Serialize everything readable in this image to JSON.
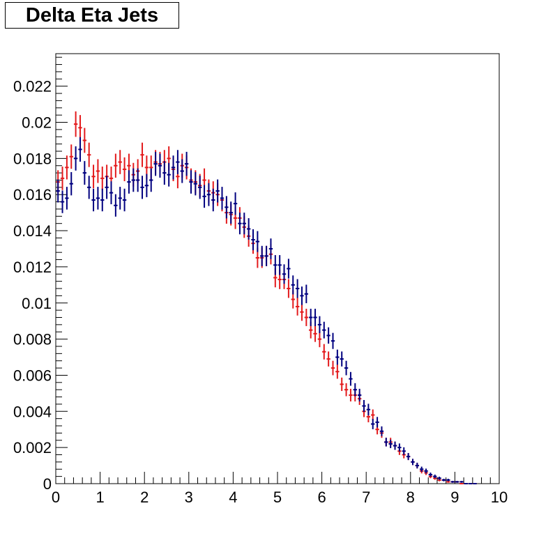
{
  "title": "Delta Eta Jets",
  "chart_data": {
    "type": "scatter",
    "title": "Delta Eta Jets",
    "xlabel": "",
    "ylabel": "",
    "xlim": [
      0,
      10
    ],
    "ylim": [
      0,
      0.0238
    ],
    "grid": false,
    "x_ticks": [
      "0",
      "1",
      "2",
      "3",
      "4",
      "5",
      "6",
      "7",
      "8",
      "9",
      "10"
    ],
    "y_ticks": [
      "0",
      "0.002",
      "0.004",
      "0.006",
      "0.008",
      "0.01",
      "0.012",
      "0.014",
      "0.016",
      "0.018",
      "0.02",
      "0.022"
    ],
    "bin_width": 0.1,
    "series": [
      {
        "color": "#e31a1c",
        "x": [
          0.05,
          0.15,
          0.25,
          0.35,
          0.45,
          0.55,
          0.65,
          0.75,
          0.85,
          0.95,
          1.05,
          1.15,
          1.25,
          1.35,
          1.45,
          1.55,
          1.65,
          1.75,
          1.85,
          1.95,
          2.05,
          2.15,
          2.25,
          2.35,
          2.45,
          2.55,
          2.65,
          2.75,
          2.85,
          2.95,
          3.05,
          3.15,
          3.25,
          3.35,
          3.45,
          3.55,
          3.65,
          3.75,
          3.85,
          3.95,
          4.05,
          4.15,
          4.25,
          4.35,
          4.45,
          4.55,
          4.65,
          4.75,
          4.85,
          4.95,
          5.05,
          5.15,
          5.25,
          5.35,
          5.45,
          5.55,
          5.65,
          5.75,
          5.85,
          5.95,
          6.05,
          6.15,
          6.25,
          6.35,
          6.45,
          6.55,
          6.65,
          6.75,
          6.85,
          6.95,
          7.05,
          7.15,
          7.25,
          7.35,
          7.45,
          7.55,
          7.65,
          7.75,
          7.85,
          7.95,
          8.05,
          8.15,
          8.25,
          8.35,
          8.45,
          8.55,
          8.65,
          8.75,
          8.85,
          8.95,
          9.05,
          9.15,
          9.25,
          9.35,
          9.45
        ],
        "y": [
          0.0167,
          0.0169,
          0.0175,
          0.0181,
          0.0199,
          0.0197,
          0.019,
          0.0182,
          0.017,
          0.0173,
          0.0169,
          0.017,
          0.0169,
          0.0176,
          0.0178,
          0.0174,
          0.0176,
          0.0171,
          0.0173,
          0.0182,
          0.0175,
          0.0175,
          0.0178,
          0.0177,
          0.0178,
          0.018,
          0.0174,
          0.017,
          0.0176,
          0.0175,
          0.0168,
          0.0167,
          0.0165,
          0.0168,
          0.0162,
          0.0161,
          0.016,
          0.0157,
          0.015,
          0.0149,
          0.0147,
          0.0147,
          0.0142,
          0.0137,
          0.0133,
          0.0125,
          0.0125,
          0.0126,
          0.0127,
          0.0114,
          0.0113,
          0.0113,
          0.0108,
          0.0102,
          0.0098,
          0.0095,
          0.0092,
          0.0085,
          0.0083,
          0.008,
          0.0073,
          0.0069,
          0.0064,
          0.0062,
          0.0055,
          0.0052,
          0.0049,
          0.0049,
          0.0047,
          0.004,
          0.0037,
          0.0038,
          0.003,
          0.0028,
          0.0023,
          0.0023,
          0.0021,
          0.0018,
          0.0016,
          0.0015,
          0.0012,
          0.001,
          0.0007,
          0.0006,
          0.0004,
          0.0003,
          0.0002,
          0.0002,
          0.0001,
          0.0001,
          0.0001,
          0.0,
          0.0,
          0.0,
          0.0
        ]
      },
      {
        "color": "#00007f",
        "x": [
          0.05,
          0.15,
          0.25,
          0.35,
          0.45,
          0.55,
          0.65,
          0.75,
          0.85,
          0.95,
          1.05,
          1.15,
          1.25,
          1.35,
          1.45,
          1.55,
          1.65,
          1.75,
          1.85,
          1.95,
          2.05,
          2.15,
          2.25,
          2.35,
          2.45,
          2.55,
          2.65,
          2.75,
          2.85,
          2.95,
          3.05,
          3.15,
          3.25,
          3.35,
          3.45,
          3.55,
          3.65,
          3.75,
          3.85,
          3.95,
          4.05,
          4.15,
          4.25,
          4.35,
          4.45,
          4.55,
          4.65,
          4.75,
          4.85,
          4.95,
          5.05,
          5.15,
          5.25,
          5.35,
          5.45,
          5.55,
          5.65,
          5.75,
          5.85,
          5.95,
          6.05,
          6.15,
          6.25,
          6.35,
          6.45,
          6.55,
          6.65,
          6.75,
          6.85,
          6.95,
          7.05,
          7.15,
          7.25,
          7.35,
          7.45,
          7.55,
          7.65,
          7.75,
          7.85,
          7.95,
          8.05,
          8.15,
          8.25,
          8.35,
          8.45,
          8.55,
          8.65,
          8.75,
          8.85,
          8.95,
          9.05,
          9.15,
          9.25,
          9.35,
          9.45
        ],
        "y": [
          0.0162,
          0.0156,
          0.0158,
          0.0166,
          0.018,
          0.0185,
          0.0172,
          0.0164,
          0.0157,
          0.0158,
          0.0157,
          0.0164,
          0.0161,
          0.0154,
          0.0158,
          0.0157,
          0.0167,
          0.0168,
          0.0168,
          0.0164,
          0.0165,
          0.0168,
          0.0177,
          0.0176,
          0.0172,
          0.0171,
          0.0175,
          0.0178,
          0.0173,
          0.0177,
          0.0167,
          0.0166,
          0.0164,
          0.0159,
          0.016,
          0.0157,
          0.0162,
          0.0158,
          0.0153,
          0.015,
          0.0155,
          0.0144,
          0.0144,
          0.0141,
          0.0135,
          0.0134,
          0.0126,
          0.0126,
          0.013,
          0.0121,
          0.0121,
          0.0116,
          0.0119,
          0.011,
          0.0108,
          0.0104,
          0.0105,
          0.0092,
          0.0092,
          0.0088,
          0.0085,
          0.0082,
          0.0079,
          0.007,
          0.0069,
          0.0064,
          0.0058,
          0.0052,
          0.0049,
          0.0043,
          0.0041,
          0.0033,
          0.0034,
          0.0029,
          0.0023,
          0.0022,
          0.0021,
          0.002,
          0.0018,
          0.0015,
          0.0012,
          0.001,
          0.0008,
          0.0007,
          0.0005,
          0.0004,
          0.0003,
          0.0002,
          0.0002,
          0.0001,
          0.0001,
          0.0001,
          0.0,
          0.0,
          0.0
        ]
      }
    ]
  }
}
